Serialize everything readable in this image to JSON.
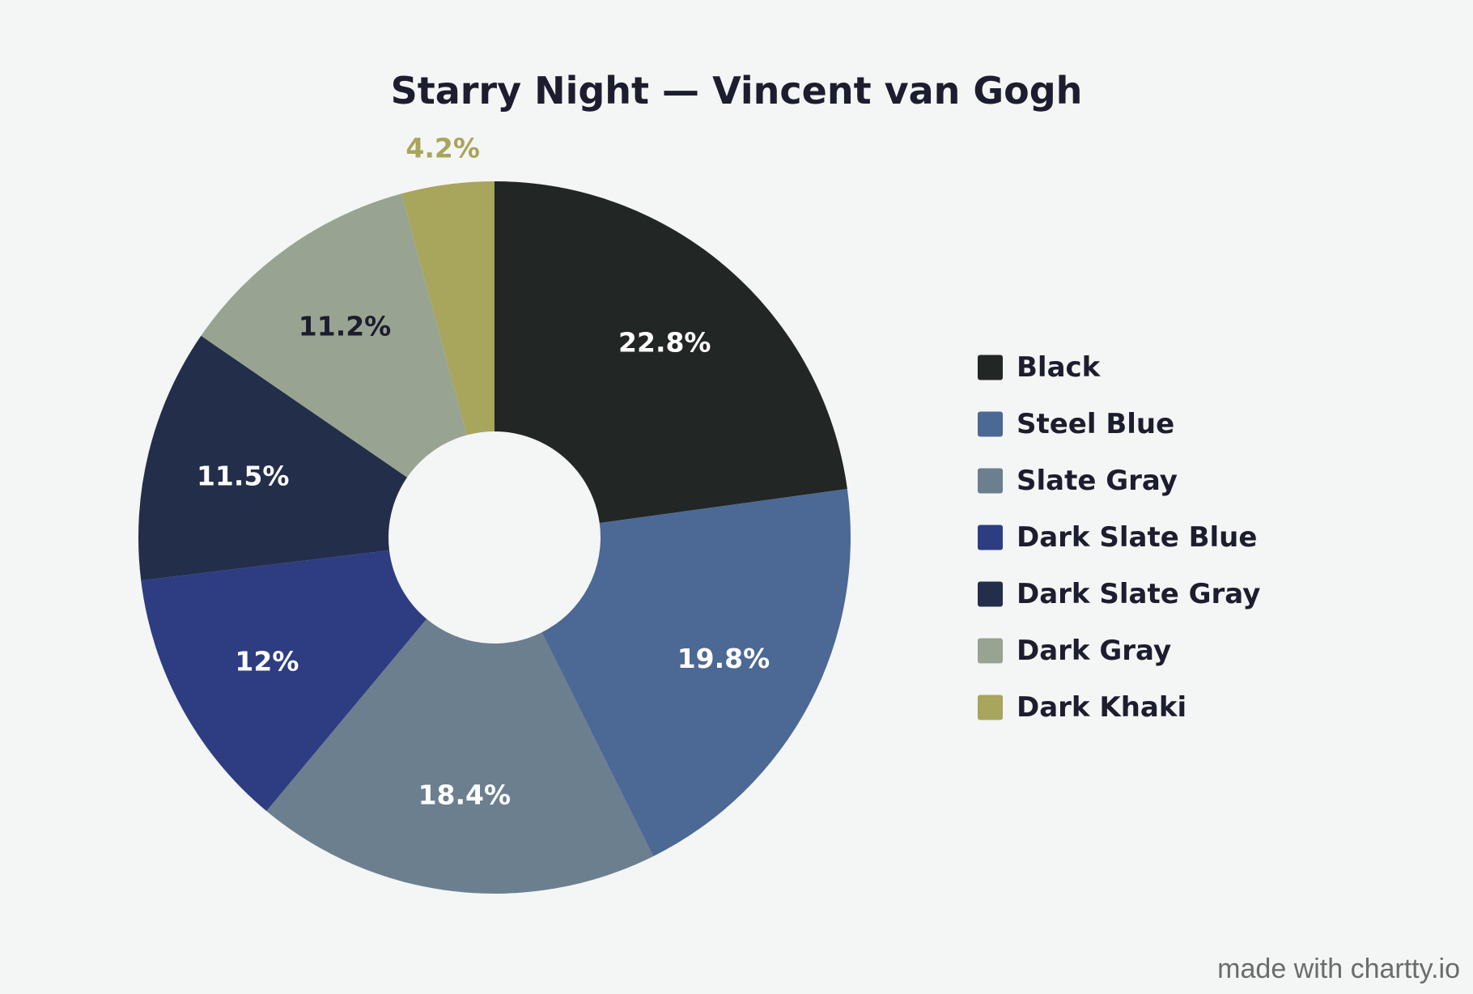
{
  "chart_data": {
    "type": "pie",
    "title": "Starry Night — Vincent van Gogh",
    "donut": true,
    "legend_position": "right",
    "slices": [
      {
        "name": "Black",
        "value": 22.8,
        "label": "22.8%",
        "color": "#222625",
        "label_color": "#ffffff"
      },
      {
        "name": "Steel Blue",
        "value": 19.8,
        "label": "19.8%",
        "color": "#4c6894",
        "label_color": "#ffffff"
      },
      {
        "name": "Slate Gray",
        "value": 18.4,
        "label": "18.4%",
        "color": "#6b7f8f",
        "label_color": "#ffffff"
      },
      {
        "name": "Dark Slate Blue",
        "value": 12,
        "label": "12%",
        "color": "#2e3d82",
        "label_color": "#ffffff"
      },
      {
        "name": "Dark Slate Gray",
        "value": 11.5,
        "label": "11.5%",
        "color": "#232e4a",
        "label_color": "#ffffff"
      },
      {
        "name": "Dark Gray",
        "value": 11.2,
        "label": "11.2%",
        "color": "#98a391",
        "label_color": "#1c1d2e"
      },
      {
        "name": "Dark Khaki",
        "value": 4.2,
        "label": "4.2%",
        "color": "#a8a55c",
        "label_color": "#a8a55c"
      }
    ]
  },
  "watermark": "made with chartty.io"
}
